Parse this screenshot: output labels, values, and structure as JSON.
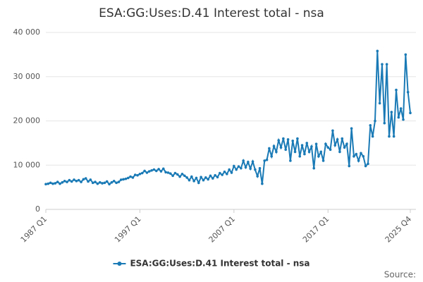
{
  "chart_data": {
    "type": "line",
    "title": "ESA:GG:Uses:D.41 Interest total - nsa",
    "source": "Source:",
    "categories": [
      "1987 Q1",
      null,
      null,
      null,
      null,
      null,
      null,
      null,
      null,
      null,
      null,
      null,
      null,
      null,
      null,
      null,
      null,
      null,
      null,
      null,
      null,
      null,
      null,
      null,
      null,
      null,
      null,
      null,
      null,
      null,
      null,
      null,
      null,
      null,
      null,
      null,
      null,
      null,
      null,
      null,
      "1997 Q1",
      null,
      null,
      null,
      null,
      null,
      null,
      null,
      null,
      null,
      null,
      null,
      null,
      null,
      null,
      null,
      null,
      null,
      null,
      null,
      null,
      null,
      null,
      null,
      null,
      null,
      null,
      null,
      null,
      null,
      null,
      null,
      null,
      null,
      null,
      null,
      null,
      null,
      null,
      null,
      "2007 Q1",
      null,
      null,
      null,
      null,
      null,
      null,
      null,
      null,
      null,
      null,
      null,
      null,
      null,
      null,
      null,
      null,
      null,
      null,
      null,
      null,
      null,
      null,
      null,
      null,
      null,
      null,
      null,
      null,
      null,
      null,
      null,
      null,
      null,
      null,
      null,
      null,
      null,
      null,
      null,
      "2017 Q1",
      null,
      null,
      null,
      null,
      null,
      null,
      null,
      null,
      null,
      null,
      null,
      null,
      null,
      null,
      null,
      null,
      null,
      null,
      null,
      null,
      null,
      null,
      null,
      null,
      null,
      null,
      null,
      null,
      null,
      null,
      null,
      null,
      null,
      null,
      "2025 Q4"
    ],
    "series": [
      {
        "name": "ESA:GG:Uses:D.41 Interest total - nsa",
        "color": "#1a7ab5",
        "values": [
          5700,
          5800,
          6000,
          5800,
          5900,
          6200,
          5800,
          6100,
          6400,
          6200,
          6600,
          6300,
          6700,
          6400,
          6600,
          6200,
          6800,
          7000,
          6300,
          6700,
          6000,
          6200,
          5800,
          6100,
          5900,
          6000,
          6300,
          5700,
          6100,
          6400,
          6000,
          6200,
          6700,
          6800,
          6900,
          7100,
          7400,
          7200,
          7800,
          7700,
          8000,
          8200,
          8700,
          8300,
          8600,
          8800,
          9000,
          8700,
          9100,
          8600,
          9200,
          8400,
          8300,
          8100,
          7600,
          8200,
          7900,
          7400,
          8000,
          7600,
          7200,
          6600,
          7400,
          6400,
          7100,
          6000,
          7300,
          6600,
          7200,
          6800,
          7600,
          7000,
          7700,
          7300,
          8200,
          7800,
          8500,
          8000,
          9000,
          8300,
          9800,
          9000,
          9700,
          9300,
          11000,
          9500,
          10700,
          9200,
          10800,
          9000,
          7500,
          9300,
          5800,
          11000,
          11200,
          13800,
          12000,
          14300,
          13000,
          15600,
          14000,
          16000,
          13500,
          15800,
          11000,
          15500,
          13000,
          16000,
          12000,
          14500,
          12500,
          15000,
          13000,
          14200,
          9300,
          14800,
          12000,
          13000,
          11000,
          14800,
          14000,
          13500,
          17800,
          14500,
          15800,
          13000,
          16000,
          14000,
          14800,
          9800,
          18300,
          12000,
          12500,
          11000,
          12700,
          12000,
          9800,
          10300,
          19000,
          16500,
          20000,
          35800,
          24000,
          32800,
          19500,
          32800,
          16500,
          22000,
          16500,
          27000,
          20800,
          22800,
          20300,
          35000,
          26500,
          21800
        ]
      }
    ],
    "ylim": [
      0,
      40000
    ],
    "yticks": [
      0,
      {
        "value": 10000,
        "label": "10 000"
      },
      {
        "value": 20000,
        "label": "20 000"
      },
      {
        "value": 30000,
        "label": "30 000"
      },
      {
        "value": 40000,
        "label": "40 000"
      }
    ],
    "grid": true,
    "legend": "bottom"
  }
}
